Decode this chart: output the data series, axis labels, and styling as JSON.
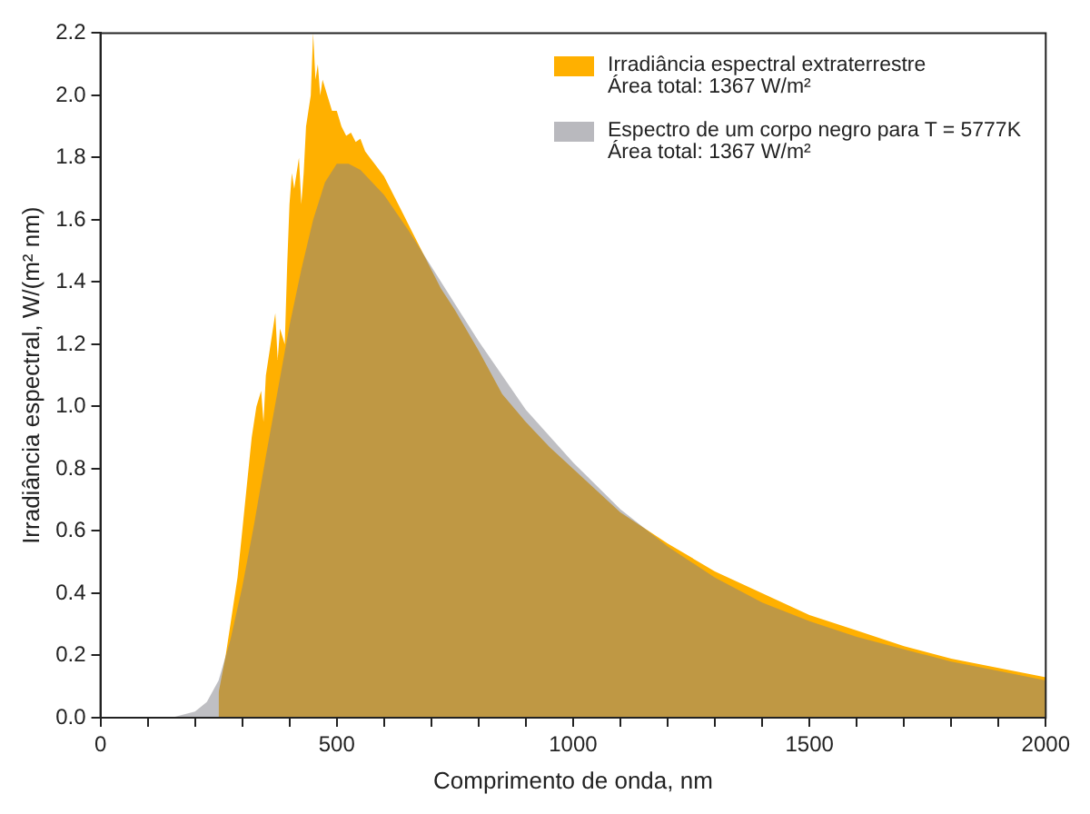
{
  "chart_data": {
    "type": "area",
    "xlabel": "Comprimento de onda, nm",
    "ylabel": "Irradiância espectral, W/(m² nm)",
    "xlim": [
      0,
      2000
    ],
    "ylim": [
      0,
      2.2
    ],
    "xticks": [
      0,
      {
        "value": 100,
        "label": null
      },
      {
        "value": 200,
        "label": null
      },
      {
        "value": 300,
        "label": null
      },
      {
        "value": 400,
        "label": null
      },
      500,
      {
        "value": 600,
        "label": null
      },
      {
        "value": 700,
        "label": null
      },
      {
        "value": 800,
        "label": null
      },
      {
        "value": 900,
        "label": null
      },
      1000,
      {
        "value": 1100,
        "label": null
      },
      {
        "value": 1200,
        "label": null
      },
      {
        "value": 1300,
        "label": null
      },
      {
        "value": 1400,
        "label": null
      },
      1500,
      {
        "value": 1600,
        "label": null
      },
      {
        "value": 1700,
        "label": null
      },
      {
        "value": 1800,
        "label": null
      },
      {
        "value": 1900,
        "label": null
      },
      2000
    ],
    "yticks": [
      {
        "value": 0,
        "label": "0.0"
      },
      {
        "value": 0.2,
        "label": "0.2"
      },
      {
        "value": 0.4,
        "label": "0.4"
      },
      {
        "value": 0.6,
        "label": "0.6"
      },
      {
        "value": 0.8,
        "label": "0.8"
      },
      {
        "value": 1,
        "label": "1.0"
      },
      {
        "value": 1.2,
        "label": "1.2"
      },
      {
        "value": 1.4,
        "label": "1.4"
      },
      {
        "value": 1.6,
        "label": "1.6"
      },
      {
        "value": 1.8,
        "label": "1.8"
      },
      {
        "value": 2,
        "label": "2.0"
      },
      {
        "value": 2.2,
        "label": "2.2"
      }
    ],
    "grid": false,
    "legend": "top right",
    "annotations": [
      "Área total: 1367 W/m²",
      "Área total: 1367 W/m²"
    ],
    "series": [
      {
        "name": "Irradiância espectral extraterrestre",
        "color": "#ffb000",
        "x": [
          250,
          265,
          280,
          290,
          300,
          310,
          320,
          330,
          340,
          345,
          350,
          360,
          370,
          375,
          380,
          390,
          395,
          400,
          405,
          410,
          420,
          425,
          430,
          435,
          440,
          445,
          450,
          455,
          460,
          465,
          470,
          480,
          490,
          500,
          510,
          520,
          530,
          540,
          550,
          560,
          570,
          580,
          600,
          620,
          640,
          660,
          680,
          700,
          720,
          750,
          800,
          850,
          900,
          950,
          1000,
          1100,
          1200,
          1300,
          1400,
          1500,
          1600,
          1700,
          1800,
          1900,
          2000
        ],
        "values": [
          0.08,
          0.2,
          0.35,
          0.45,
          0.6,
          0.75,
          0.9,
          1.0,
          1.05,
          0.95,
          1.1,
          1.2,
          1.3,
          1.15,
          1.25,
          1.2,
          1.45,
          1.65,
          1.75,
          1.7,
          1.8,
          1.65,
          1.75,
          1.9,
          1.95,
          2.0,
          2.2,
          2.05,
          2.1,
          2.0,
          2.05,
          2.0,
          1.95,
          1.95,
          1.9,
          1.87,
          1.88,
          1.85,
          1.86,
          1.82,
          1.8,
          1.78,
          1.74,
          1.68,
          1.62,
          1.56,
          1.5,
          1.44,
          1.38,
          1.31,
          1.18,
          1.04,
          0.95,
          0.87,
          0.8,
          0.66,
          0.56,
          0.47,
          0.4,
          0.33,
          0.28,
          0.23,
          0.19,
          0.16,
          0.13
        ]
      },
      {
        "name": "Espectro de um corpo negro para T = 5777K",
        "color": "#808088",
        "x": [
          150,
          200,
          225,
          250,
          275,
          300,
          325,
          350,
          375,
          400,
          425,
          450,
          475,
          500,
          525,
          550,
          600,
          650,
          700,
          750,
          800,
          900,
          1000,
          1100,
          1200,
          1300,
          1400,
          1500,
          1600,
          1700,
          1800,
          1900,
          2000
        ],
        "values": [
          0,
          0.02,
          0.05,
          0.12,
          0.25,
          0.42,
          0.62,
          0.84,
          1.05,
          1.26,
          1.44,
          1.6,
          1.72,
          1.78,
          1.78,
          1.76,
          1.68,
          1.57,
          1.45,
          1.33,
          1.21,
          0.99,
          0.82,
          0.67,
          0.55,
          0.45,
          0.37,
          0.31,
          0.26,
          0.22,
          0.18,
          0.15,
          0.12
        ]
      }
    ]
  }
}
